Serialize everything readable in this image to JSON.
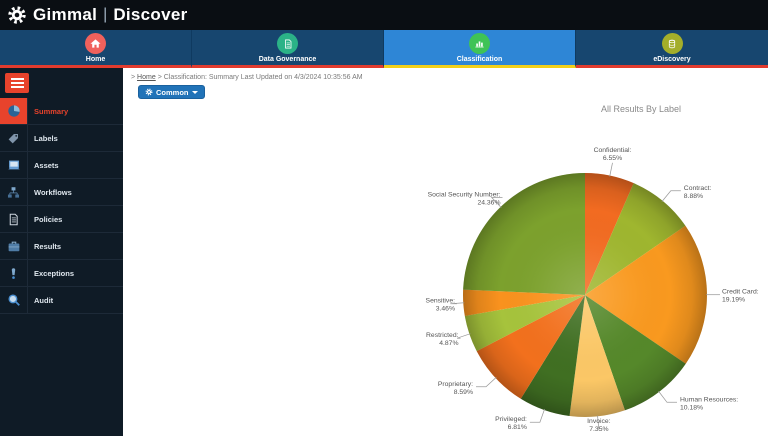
{
  "topbar": {
    "brand_primary": "Gimmal",
    "brand_separator": "|",
    "brand_secondary": "Discover"
  },
  "navbar": {
    "underline_color": "#e23b2e",
    "selected_underline_color": "#f3d019",
    "selected_bg": "#2e86d6",
    "tabs": [
      {
        "label": "Home",
        "icon": "home-icon",
        "circle_color": "#f0615c",
        "selected": false
      },
      {
        "label": "Data Governance",
        "icon": "document-icon",
        "circle_color": "#2bb287",
        "selected": false
      },
      {
        "label": "Classification",
        "icon": "bar-chart-icon",
        "circle_color": "#3fc356",
        "selected": true
      },
      {
        "label": "eDiscovery",
        "icon": "database-icon",
        "circle_color": "#a4ae2a",
        "selected": false
      }
    ]
  },
  "sidebar": {
    "selected_color": "#e8432c",
    "items": [
      {
        "label": "Summary",
        "icon": "pie-chart-icon",
        "selected": true
      },
      {
        "label": "Labels",
        "icon": "tag-icon",
        "selected": false
      },
      {
        "label": "Assets",
        "icon": "laptop-icon",
        "selected": false
      },
      {
        "label": "Workflows",
        "icon": "workflow-icon",
        "selected": false
      },
      {
        "label": "Policies",
        "icon": "document-icon",
        "selected": false
      },
      {
        "label": "Results",
        "icon": "briefcase-icon",
        "selected": false
      },
      {
        "label": "Exceptions",
        "icon": "exclamation-icon",
        "selected": false
      },
      {
        "label": "Audit",
        "icon": "search-icon",
        "selected": false
      }
    ]
  },
  "breadcrumb": {
    "prefix": ">",
    "home": "Home",
    "separator": ">",
    "text": "Classification: Summary Last Updated on 4/3/2024 10:35:56 AM"
  },
  "toolbar": {
    "common_label": "Common"
  },
  "chart_data": {
    "type": "pie",
    "title": "All Results By Label",
    "legend": "none",
    "label_format": "{category}: {value}%",
    "series": [
      {
        "name": "All Results By Label",
        "data": [
          {
            "category": "Confidential",
            "value": 6.55,
            "color": "#f26b21"
          },
          {
            "category": "Contract",
            "value": 8.88,
            "color": "#9fb62f"
          },
          {
            "category": "Credit Card",
            "value": 19.19,
            "color": "#f9991f"
          },
          {
            "category": "Human Resources",
            "value": 10.18,
            "color": "#55882a"
          },
          {
            "category": "Invoice",
            "value": 7.35,
            "color": "#fbc766"
          },
          {
            "category": "Privileged",
            "value": 6.81,
            "color": "#406f22"
          },
          {
            "category": "Proprietary",
            "value": 8.59,
            "color": "#f2701d"
          },
          {
            "category": "Restricted",
            "value": 4.87,
            "color": "#a6c33c"
          },
          {
            "category": "Sensitive",
            "value": 3.46,
            "color": "#f9921e"
          },
          {
            "category": "Social Security Number",
            "value": 24.36,
            "color": "#7ca12d"
          }
        ]
      }
    ]
  }
}
